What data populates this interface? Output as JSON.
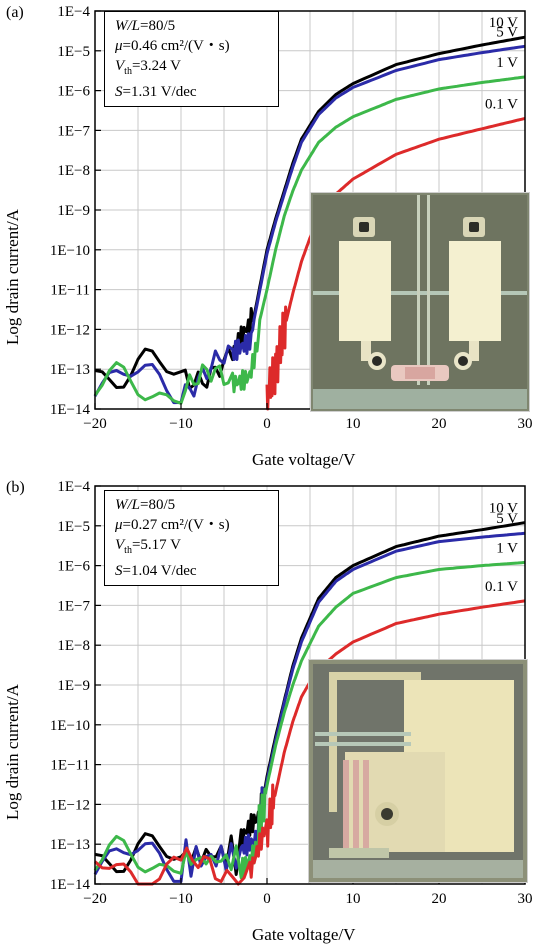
{
  "chart_data": [
    {
      "type": "line",
      "panel_label": "(a)",
      "xlabel": "Gate voltage/V",
      "ylabel": "Log drain current/A",
      "x_ticks": [
        "−20",
        "−10",
        "0",
        "10",
        "20",
        "30"
      ],
      "y_ticks": [
        "1E−4",
        "1E−5",
        "1E−6",
        "1E−7",
        "1E−8",
        "1E−9",
        "1E−10",
        "1E−11",
        "1E−12",
        "1E−13",
        "1E−14"
      ],
      "xlim": [
        -20,
        30
      ],
      "ylim_log10": [
        -14,
        -4
      ],
      "y_scale": "log",
      "grid": true,
      "params": {
        "wl_label": "W/L",
        "wl_value": "=80/5",
        "mu_label": "μ",
        "mu_value": "=0.46 cm²/(V・s)",
        "vth_label": "V",
        "vth_sub": "th",
        "vth_value": "=3.24 V",
        "s_label": "S",
        "s_value": "=1.31 V/dec"
      },
      "series": [
        {
          "name": "10 V",
          "color": "#000000",
          "x": [
            -20,
            -10,
            -4,
            -2,
            0,
            1,
            2,
            3,
            4,
            6,
            8,
            10,
            15,
            20,
            25,
            30
          ],
          "y": [
            1e-13,
            9e-14,
            1.5e-13,
            6e-13,
            1e-10,
            6e-10,
            3e-09,
            1.5e-08,
            6e-08,
            3e-07,
            8e-07,
            1.5e-06,
            4.5e-06,
            8.5e-06,
            1.4e-05,
            2.2e-05
          ]
        },
        {
          "name": "5 V",
          "color": "#2b2ba8",
          "x": [
            -20,
            -10,
            -4,
            -2,
            0,
            1,
            2,
            3,
            4,
            6,
            8,
            10,
            15,
            20,
            25,
            30
          ],
          "y": [
            6e-14,
            5e-14,
            1.2e-13,
            5e-13,
            8e-11,
            5e-10,
            2.5e-09,
            1.2e-08,
            5e-08,
            2.5e-07,
            6.5e-07,
            1.2e-06,
            3.2e-06,
            6e-06,
            9e-06,
            1.3e-05
          ]
        },
        {
          "name": "1 V",
          "color": "#3db84a",
          "x": [
            -20,
            -10,
            -4,
            -2,
            0,
            1,
            2,
            3,
            4,
            6,
            8,
            10,
            15,
            20,
            25,
            30
          ],
          "y": [
            4e-14,
            3e-14,
            5e-14,
            1.5e-13,
            1e-11,
            1e-10,
            7e-10,
            3e-09,
            1e-08,
            5e-08,
            1.2e-07,
            2.2e-07,
            6e-07,
            1.1e-06,
            1.6e-06,
            2.2e-06
          ]
        },
        {
          "name": "0.1 V",
          "color": "#dd2a2a",
          "x": [
            0,
            1,
            2,
            3,
            4,
            5,
            6,
            8,
            10,
            15,
            20,
            25,
            30
          ],
          "y": [
            2e-14,
            1e-13,
            1e-12,
            8e-12,
            5e-11,
            2e-10,
            6e-10,
            2.5e-09,
            6e-09,
            2.5e-08,
            6e-08,
            1.1e-07,
            2e-07
          ]
        }
      ]
    },
    {
      "type": "line",
      "panel_label": "(b)",
      "xlabel": "Gate voltage/V",
      "ylabel": "Log drain current/A",
      "x_ticks": [
        "−20",
        "−10",
        "0",
        "10",
        "20",
        "30"
      ],
      "y_ticks": [
        "1E−4",
        "1E−5",
        "1E−6",
        "1E−7",
        "1E−8",
        "1E−9",
        "1E−10",
        "1E−11",
        "1E−12",
        "1E−13",
        "1E−14"
      ],
      "xlim": [
        -20,
        30
      ],
      "ylim_log10": [
        -14,
        -4
      ],
      "y_scale": "log",
      "grid": true,
      "params": {
        "wl_label": "W/L",
        "wl_value": "=80/5",
        "mu_label": "μ",
        "mu_value": "=0.27 cm²/(V・s)",
        "vth_label": "V",
        "vth_sub": "th",
        "vth_value": "=5.17 V",
        "s_label": "S",
        "s_value": "=1.04 V/dec"
      },
      "series": [
        {
          "name": "10 V",
          "color": "#000000",
          "x": [
            -20,
            -10,
            -3,
            -1,
            0,
            1,
            2,
            3,
            4,
            6,
            8,
            10,
            15,
            20,
            25,
            30
          ],
          "y": [
            6e-14,
            5e-14,
            6e-14,
            3e-13,
            5e-12,
            5e-11,
            4e-10,
            3e-09,
            1.5e-08,
            1.5e-07,
            5e-07,
            1e-06,
            3e-06,
            5.5e-06,
            8e-06,
            1.2e-05
          ]
        },
        {
          "name": "5 V",
          "color": "#2b2ba8",
          "x": [
            -20,
            -10,
            -3,
            -1,
            0,
            1,
            2,
            3,
            4,
            6,
            8,
            10,
            15,
            20,
            25,
            30
          ],
          "y": [
            5e-14,
            4e-14,
            5e-14,
            2.5e-13,
            4e-12,
            4e-11,
            3.5e-10,
            2.5e-09,
            1.2e-08,
            1.2e-07,
            4e-07,
            8e-07,
            2.3e-06,
            4e-06,
            5.2e-06,
            6.5e-06
          ]
        },
        {
          "name": "1 V",
          "color": "#3db84a",
          "x": [
            -20,
            -10,
            -3,
            -1,
            0,
            1,
            2,
            3,
            4,
            6,
            8,
            10,
            15,
            20,
            25,
            30
          ],
          "y": [
            4e-14,
            4e-14,
            4e-14,
            2e-13,
            3e-12,
            3e-11,
            2e-10,
            1e-09,
            4e-09,
            3e-08,
            9e-08,
            2e-07,
            5e-07,
            8e-07,
            1e-06,
            1.2e-06
          ]
        },
        {
          "name": "0.1 V",
          "color": "#dd2a2a",
          "x": [
            -20,
            -10,
            -2,
            0,
            1,
            2,
            3,
            4,
            5,
            6,
            8,
            10,
            15,
            20,
            25,
            30
          ],
          "y": [
            2e-14,
            2e-14,
            3e-14,
            2e-13,
            2e-12,
            2e-11,
            1.2e-10,
            5e-10,
            1.2e-09,
            2.5e-09,
            6e-09,
            1.2e-08,
            3.5e-08,
            6e-08,
            9e-08,
            1.3e-07
          ]
        }
      ]
    }
  ]
}
